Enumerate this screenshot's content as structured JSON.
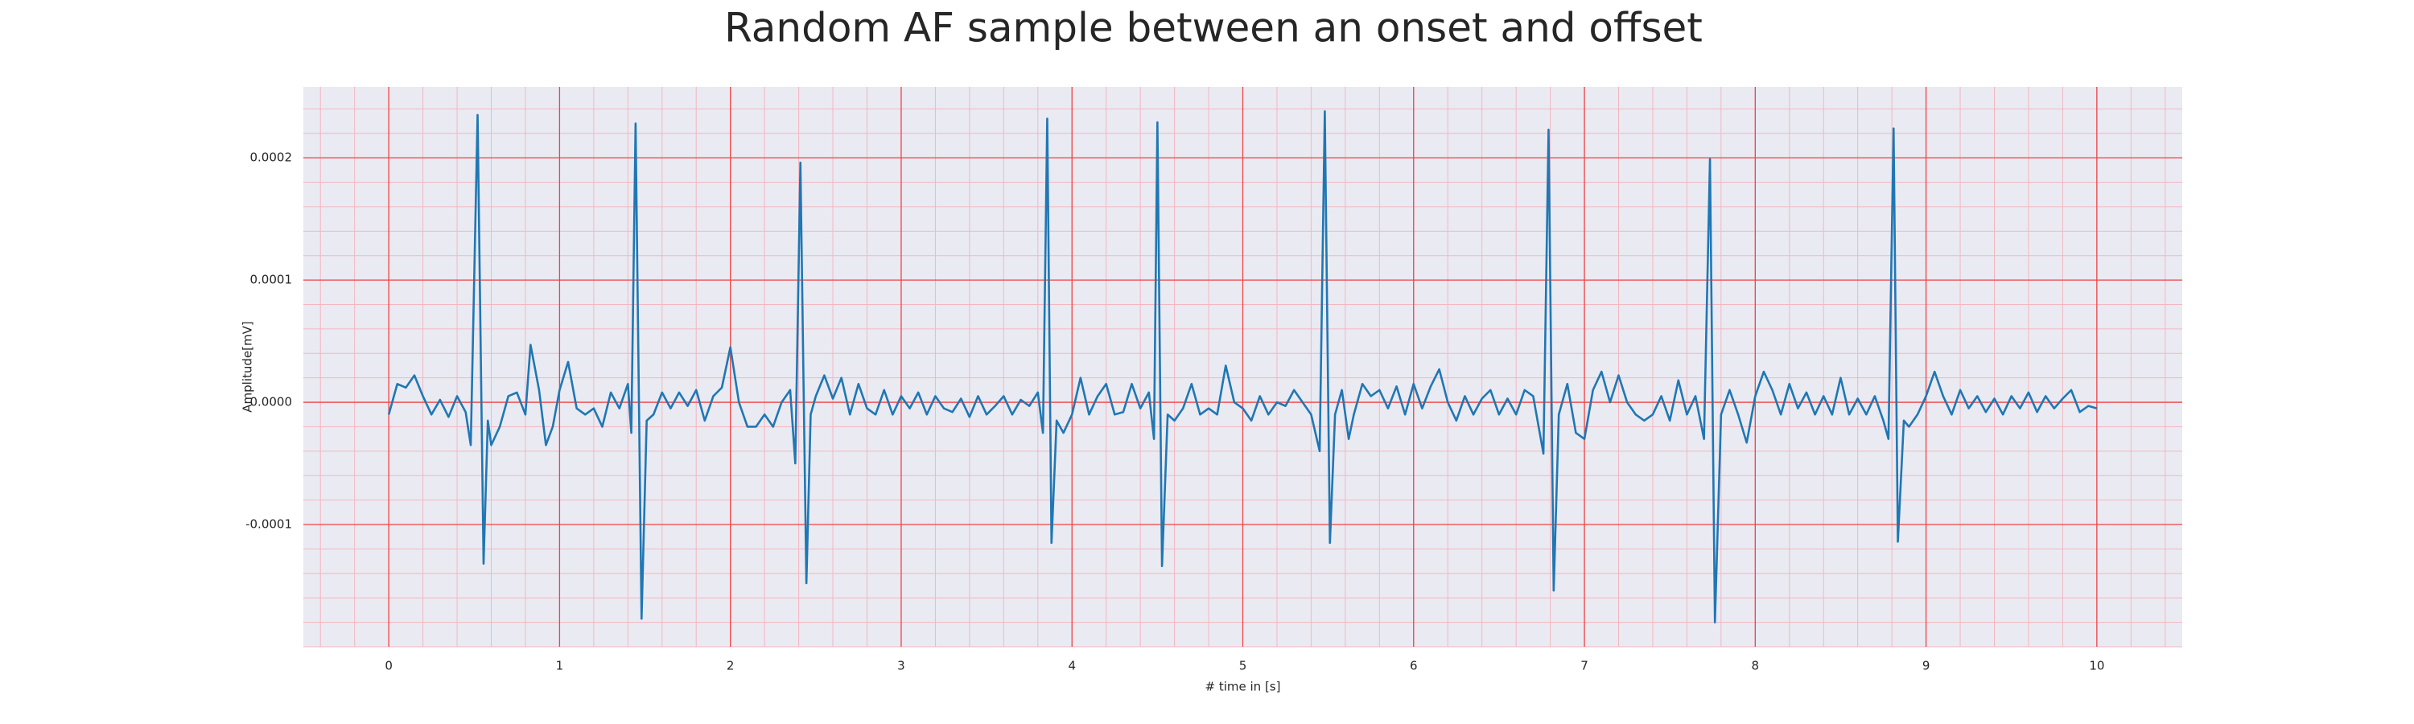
{
  "chart_data": {
    "type": "line",
    "title": "Random AF sample between an onset and offset",
    "xlabel": "# time in [s]",
    "ylabel": "Amplitude[mV]",
    "xlim": [
      -0.5,
      10.5
    ],
    "ylim": [
      -0.0002,
      0.000258
    ],
    "xticks": [
      0,
      1,
      2,
      3,
      4,
      5,
      6,
      7,
      8,
      9,
      10
    ],
    "yticks": [
      -0.0001,
      {
        "value": 0,
        "label": "0.0000"
      },
      0.0001,
      0.0002
    ],
    "grid": true,
    "minor_grid": true,
    "x": [
      0,
      0.05,
      0.1,
      0.15,
      0.2,
      0.25,
      0.3,
      0.35,
      0.4,
      0.45,
      0.48,
      0.52,
      0.555,
      0.58,
      0.6,
      0.65,
      0.7,
      0.75,
      0.8,
      0.83,
      0.88,
      0.92,
      0.96,
      1.0,
      1.05,
      1.1,
      1.15,
      1.2,
      1.25,
      1.3,
      1.35,
      1.4,
      1.42,
      1.445,
      1.48,
      1.51,
      1.55,
      1.6,
      1.65,
      1.7,
      1.75,
      1.8,
      1.85,
      1.9,
      1.95,
      2.0,
      2.05,
      2.1,
      2.15,
      2.2,
      2.25,
      2.3,
      2.35,
      2.38,
      2.41,
      2.445,
      2.47,
      2.5,
      2.55,
      2.6,
      2.65,
      2.7,
      2.75,
      2.8,
      2.85,
      2.9,
      2.95,
      3.0,
      3.05,
      3.1,
      3.15,
      3.2,
      3.25,
      3.3,
      3.35,
      3.4,
      3.45,
      3.5,
      3.55,
      3.6,
      3.65,
      3.7,
      3.75,
      3.8,
      3.83,
      3.855,
      3.88,
      3.91,
      3.95,
      4.0,
      4.05,
      4.1,
      4.15,
      4.2,
      4.25,
      4.3,
      4.35,
      4.4,
      4.45,
      4.48,
      4.5,
      4.527,
      4.56,
      4.6,
      4.65,
      4.7,
      4.75,
      4.8,
      4.85,
      4.9,
      4.95,
      5.0,
      5.05,
      5.1,
      5.15,
      5.2,
      5.25,
      5.3,
      5.35,
      5.4,
      5.45,
      5.48,
      5.51,
      5.54,
      5.58,
      5.62,
      5.65,
      5.7,
      5.75,
      5.8,
      5.85,
      5.9,
      5.95,
      6.0,
      6.05,
      6.1,
      6.15,
      6.2,
      6.25,
      6.3,
      6.35,
      6.4,
      6.45,
      6.5,
      6.55,
      6.6,
      6.65,
      6.7,
      6.76,
      6.79,
      6.82,
      6.85,
      6.9,
      6.95,
      7.0,
      7.05,
      7.1,
      7.15,
      7.2,
      7.25,
      7.3,
      7.35,
      7.4,
      7.45,
      7.5,
      7.55,
      7.6,
      7.65,
      7.7,
      7.735,
      7.764,
      7.8,
      7.85,
      7.9,
      7.95,
      8.0,
      8.05,
      8.1,
      8.15,
      8.2,
      8.25,
      8.3,
      8.35,
      8.4,
      8.45,
      8.5,
      8.55,
      8.6,
      8.65,
      8.7,
      8.75,
      8.78,
      8.81,
      8.835,
      8.87,
      8.9,
      8.95,
      9.0,
      9.05,
      9.1,
      9.15,
      9.2,
      9.25,
      9.3,
      9.35,
      9.4,
      9.45,
      9.5,
      9.55,
      9.6,
      9.65,
      9.7,
      9.75,
      9.8,
      9.85,
      9.9,
      9.95,
      10.0
    ],
    "series": [
      {
        "color": "#1f77b4",
        "values": [
          -1e-05,
          1.5e-05,
          1.2e-05,
          2.2e-05,
          5e-06,
          -1e-05,
          2e-06,
          -1.2e-05,
          5e-06,
          -8e-06,
          -3.5e-05,
          0.000235,
          -0.000132,
          -1.5e-05,
          -3.5e-05,
          -2e-05,
          5e-06,
          8e-06,
          -1e-05,
          4.7e-05,
          1e-05,
          -3.5e-05,
          -2e-05,
          1e-05,
          3.3e-05,
          -5e-06,
          -1e-05,
          -5e-06,
          -2e-05,
          8e-06,
          -5e-06,
          1.5e-05,
          -2.5e-05,
          0.000228,
          -0.000177,
          -1.5e-05,
          -1e-05,
          8e-06,
          -5e-06,
          8e-06,
          -3e-06,
          1e-05,
          -1.5e-05,
          5e-06,
          1.2e-05,
          4.5e-05,
          0,
          -2e-05,
          -2e-05,
          -1e-05,
          -2e-05,
          0,
          1e-05,
          -5e-05,
          0.000196,
          -0.000148,
          -1e-05,
          5e-06,
          2.2e-05,
          3e-06,
          2e-05,
          -1e-05,
          1.5e-05,
          -5e-06,
          -1e-05,
          1e-05,
          -1e-05,
          5e-06,
          -5e-06,
          8e-06,
          -1e-05,
          5e-06,
          -5e-06,
          -8e-06,
          3e-06,
          -1.2e-05,
          5e-06,
          -1e-05,
          -3e-06,
          5e-06,
          -1e-05,
          2e-06,
          -3e-06,
          8e-06,
          -2.5e-05,
          0.000232,
          -0.000115,
          -1.5e-05,
          -2.5e-05,
          -1e-05,
          2e-05,
          -1e-05,
          5e-06,
          1.5e-05,
          -1e-05,
          -8e-06,
          1.5e-05,
          -5e-06,
          8e-06,
          -3e-05,
          0.000229,
          -0.000134,
          -1e-05,
          -1.5e-05,
          -5e-06,
          1.5e-05,
          -1e-05,
          -5e-06,
          -1e-05,
          3e-05,
          0,
          -5e-06,
          -1.5e-05,
          5e-06,
          -1e-05,
          0,
          -3e-06,
          1e-05,
          0,
          -1e-05,
          -4e-05,
          0.000238,
          -0.000115,
          -1e-05,
          1e-05,
          -3e-05,
          -1e-05,
          1.5e-05,
          5e-06,
          1e-05,
          -5e-06,
          1.3e-05,
          -1e-05,
          1.5e-05,
          -5e-06,
          1.3e-05,
          2.7e-05,
          0,
          -1.5e-05,
          5e-06,
          -1e-05,
          3e-06,
          1e-05,
          -1e-05,
          3e-06,
          -1e-05,
          1e-05,
          5e-06,
          -4.2e-05,
          0.000223,
          -0.000154,
          -1e-05,
          1.5e-05,
          -2.5e-05,
          -3e-05,
          1e-05,
          2.5e-05,
          0,
          2.2e-05,
          0,
          -1e-05,
          -1.5e-05,
          -1e-05,
          5e-06,
          -1.5e-05,
          1.8e-05,
          -1e-05,
          5e-06,
          -3e-05,
          0.000199,
          -0.00018,
          -1e-05,
          1e-05,
          -1e-05,
          -3.3e-05,
          5e-06,
          2.5e-05,
          1e-05,
          -1e-05,
          1.5e-05,
          -5e-06,
          8e-06,
          -1e-05,
          5e-06,
          -1e-05,
          2e-05,
          -1e-05,
          3e-06,
          -1e-05,
          5e-06,
          -1.5e-05,
          -3e-05,
          0.000224,
          -0.000114,
          -1.5e-05,
          -2e-05,
          -1e-05,
          5e-06,
          2.5e-05,
          5e-06,
          -1e-05,
          1e-05,
          -5e-06,
          5e-06,
          -8e-06,
          3e-06,
          -1e-05,
          5e-06,
          -5e-06,
          8e-06,
          -8e-06,
          5e-06,
          -5e-06,
          3e-06,
          1e-05,
          -8e-06,
          -3e-06,
          -5e-06
        ]
      }
    ]
  }
}
